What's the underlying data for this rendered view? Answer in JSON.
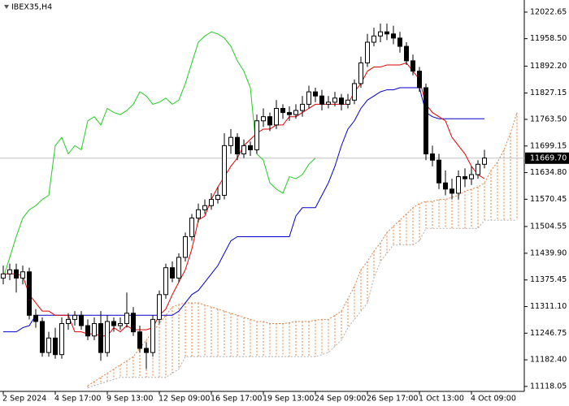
{
  "chart_data": {
    "type": "candlestick",
    "title": "IBEX35,H4",
    "categories": [
      "2 Sep 2024",
      null,
      null,
      null,
      null,
      null,
      null,
      null,
      "4 Sep 17:00",
      null,
      null,
      null,
      null,
      null,
      null,
      null,
      "9 Sep 13:00",
      null,
      null,
      null,
      null,
      null,
      null,
      null,
      "12 Sep 09:00",
      null,
      null,
      null,
      null,
      null,
      null,
      null,
      "16 Sep 17:00",
      null,
      null,
      null,
      null,
      null,
      null,
      null,
      "19 Sep 13:00",
      null,
      null,
      null,
      null,
      null,
      null,
      null,
      "24 Sep 09:00",
      null,
      null,
      null,
      null,
      null,
      null,
      null,
      "26 Sep 17:00",
      null,
      null,
      null,
      null,
      null,
      null,
      null,
      "1 Oct 13:00",
      null,
      null,
      null,
      null,
      null,
      null,
      null,
      "4 Oct 09:00",
      null,
      null,
      null,
      null,
      null,
      null,
      null
    ],
    "open": [
      11380,
      11390,
      11400,
      11380,
      11395,
      11290,
      11275,
      11200,
      11235,
      11195,
      11270,
      11280,
      11290,
      11265,
      11240,
      11270,
      11200,
      11275,
      11265,
      11270,
      11295,
      11250,
      11210,
      11200,
      11280,
      11340,
      11405,
      11380,
      11430,
      11480,
      11525,
      11545,
      11555,
      11570,
      11580,
      11700,
      11720,
      11680,
      11700,
      11690,
      11760,
      11770,
      11750,
      11790,
      11780,
      11775,
      11785,
      11800,
      11830,
      11820,
      11800,
      11805,
      11815,
      11800,
      11810,
      11850,
      11900,
      11950,
      11965,
      11975,
      11970,
      11960,
      11940,
      11905,
      11880,
      11840,
      11680,
      11665,
      11610,
      11595,
      11585,
      11625,
      11620,
      11630,
      11655,
      null,
      null,
      null,
      null,
      null
    ],
    "high": [
      11410,
      11415,
      11415,
      11410,
      11405,
      11305,
      11285,
      11250,
      11260,
      11285,
      11295,
      11300,
      11300,
      11280,
      11285,
      11300,
      11290,
      11285,
      11285,
      11345,
      11310,
      11265,
      11225,
      11290,
      11350,
      11415,
      11420,
      11440,
      11490,
      11535,
      11560,
      11570,
      11585,
      11600,
      11730,
      11740,
      11730,
      11715,
      11710,
      11775,
      11790,
      11780,
      11810,
      11800,
      11795,
      11800,
      11820,
      11845,
      11840,
      11835,
      11820,
      11830,
      11825,
      11825,
      11860,
      11915,
      11970,
      11985,
      11995,
      11995,
      11990,
      11975,
      11950,
      11920,
      11890,
      11850,
      11700,
      11680,
      11640,
      11620,
      11640,
      11645,
      11650,
      11665,
      11690,
      null,
      null,
      null,
      null,
      null
    ],
    "low": [
      11365,
      11375,
      11345,
      11365,
      11280,
      11260,
      11190,
      11190,
      11185,
      11185,
      11255,
      11265,
      11255,
      11230,
      11230,
      11180,
      11190,
      11250,
      11255,
      11260,
      11240,
      11200,
      11160,
      11190,
      11270,
      11330,
      11370,
      11370,
      11420,
      11470,
      11515,
      11535,
      11545,
      11560,
      11570,
      11680,
      11665,
      11670,
      11675,
      11680,
      11745,
      11735,
      11740,
      11765,
      11760,
      11765,
      11770,
      11790,
      11805,
      11785,
      11790,
      11795,
      11785,
      11790,
      11800,
      11840,
      11890,
      11940,
      11950,
      11955,
      11945,
      11925,
      11895,
      11870,
      11830,
      11665,
      11650,
      11595,
      11580,
      11570,
      11570,
      11600,
      11605,
      11620,
      11645,
      null,
      null,
      null,
      null,
      null
    ],
    "close": [
      11390,
      11400,
      11380,
      11395,
      11290,
      11275,
      11200,
      11235,
      11195,
      11270,
      11280,
      11290,
      11265,
      11240,
      11270,
      11200,
      11275,
      11265,
      11270,
      11295,
      11250,
      11210,
      11200,
      11280,
      11340,
      11405,
      11380,
      11430,
      11480,
      11525,
      11545,
      11555,
      11570,
      11580,
      11700,
      11720,
      11680,
      11700,
      11690,
      11760,
      11770,
      11750,
      11790,
      11780,
      11775,
      11785,
      11800,
      11830,
      11820,
      11800,
      11805,
      11815,
      11800,
      11810,
      11850,
      11900,
      11950,
      11965,
      11975,
      11970,
      11960,
      11940,
      11905,
      11880,
      11840,
      11680,
      11665,
      11610,
      11595,
      11585,
      11625,
      11620,
      11630,
      11655,
      11670,
      null,
      null,
      null,
      null,
      null
    ],
    "up_color": "#ffffff",
    "down_color": "#000000",
    "tenkan": {
      "color": "#e00000",
      "values": [
        11390,
        11390,
        11390,
        11385,
        11340,
        11320,
        11300,
        11300,
        11290,
        11290,
        11290,
        11250,
        11250,
        11245,
        11245,
        11240,
        11240,
        11260,
        11250,
        11265,
        11255,
        11255,
        11255,
        11260,
        11290,
        11305,
        11340,
        11370,
        11400,
        11450,
        11520,
        11530,
        11570,
        11600,
        11625,
        11650,
        11670,
        11700,
        11715,
        11730,
        11740,
        11740,
        11750,
        11750,
        11770,
        11770,
        11780,
        11790,
        11800,
        11800,
        11800,
        11800,
        11800,
        11800,
        11830,
        11850,
        11880,
        11890,
        11890,
        11895,
        11895,
        11895,
        11900,
        11880,
        11860,
        11800,
        11780,
        11770,
        11760,
        11720,
        11700,
        11680,
        11650,
        11630,
        11620,
        null,
        null,
        null,
        null,
        null
      ]
    },
    "kijun": {
      "color": "#0000c8",
      "values": [
        11250,
        11250,
        11250,
        11260,
        11265,
        11290,
        11290,
        11290,
        11290,
        11290,
        11290,
        11290,
        11290,
        11290,
        11290,
        11290,
        11290,
        11290,
        11290,
        11290,
        11290,
        11290,
        11290,
        11290,
        11290,
        11290,
        11290,
        11300,
        11320,
        11340,
        11350,
        11370,
        11390,
        11410,
        11440,
        11470,
        11480,
        11480,
        11480,
        11480,
        11480,
        11480,
        11480,
        11480,
        11480,
        11530,
        11550,
        11550,
        11550,
        11580,
        11610,
        11650,
        11700,
        11740,
        11760,
        11790,
        11810,
        11820,
        11830,
        11835,
        11835,
        11840,
        11840,
        11840,
        11840,
        11780,
        11770,
        11765,
        11765,
        11765,
        11765,
        11765,
        11765,
        11765,
        11765,
        null,
        null,
        null,
        null,
        null
      ]
    },
    "chikou_color": "#22cc22",
    "senkou_a": {
      "color": "#e08040",
      "values": [
        null,
        null,
        null,
        null,
        null,
        null,
        null,
        null,
        null,
        null,
        null,
        null,
        null,
        11120,
        11130,
        11140,
        11150,
        11160,
        11170,
        11180,
        11190,
        11210,
        11230,
        11250,
        11270,
        11290,
        11310,
        11316,
        11320,
        11320,
        11320,
        11315,
        11310,
        11305,
        11300,
        11295,
        11290,
        11285,
        11280,
        11275,
        11275,
        11270,
        11270,
        11270,
        11272,
        11275,
        11275,
        11275,
        11278,
        11280,
        11280,
        11290,
        11300,
        11330,
        11360,
        11400,
        11420,
        11445,
        11465,
        11490,
        11505,
        11520,
        11535,
        11550,
        11560,
        11565,
        11565,
        11570,
        11570,
        11575,
        11580,
        11590,
        11595,
        11600,
        11610,
        11640,
        11660,
        11690,
        11730,
        11780
      ]
    },
    "senkou_b": {
      "color": "#b0b0b0",
      "values": [
        null,
        null,
        null,
        null,
        null,
        null,
        null,
        null,
        null,
        null,
        null,
        null,
        null,
        11115,
        11120,
        11125,
        11130,
        11135,
        11140,
        11140,
        11140,
        11140,
        11140,
        11140,
        11140,
        11140,
        11150,
        11160,
        11190,
        11190,
        11190,
        11190,
        11190,
        11190,
        11190,
        11190,
        11190,
        11190,
        11190,
        11190,
        11190,
        11190,
        11190,
        11190,
        11190,
        11190,
        11190,
        11190,
        11190,
        11195,
        11200,
        11215,
        11230,
        11260,
        11280,
        11300,
        11320,
        11380,
        11420,
        11440,
        11460,
        11460,
        11460,
        11460,
        11470,
        11500,
        11500,
        11500,
        11500,
        11500,
        11500,
        11500,
        11500,
        11500,
        11520,
        11520,
        11520,
        11520,
        11520,
        11520
      ]
    },
    "current_price": {
      "value": 11669.7,
      "label": "11669.70"
    },
    "ylim": [
      11110,
      12052
    ],
    "yticks": [
      12022.65,
      {
        "value": 11958.5,
        "label": "11958.50"
      },
      {
        "value": 11892.2,
        "label": "11892.20"
      },
      11827.15,
      {
        "value": 11763.5,
        "label": "11763.50"
      },
      11699.15,
      {
        "value": 11634.8,
        "label": "11634.80"
      },
      11570.45,
      11504.55,
      {
        "value": 11439.9,
        "label": "11439.90"
      },
      11375.45,
      {
        "value": 11311.1,
        "label": "11311.10"
      },
      11246.75,
      {
        "value": 11182.4,
        "label": "11182.40"
      },
      11118.05
    ],
    "grid": false
  }
}
